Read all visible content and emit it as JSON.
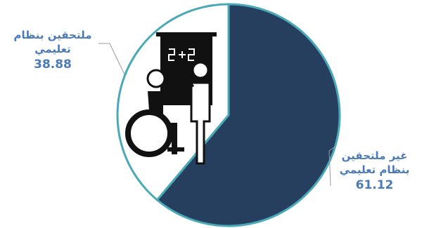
{
  "chart_data": {
    "type": "pie",
    "categories": [
      "غير ملتحقين بنظام تعليمي",
      "ملتحقين بنظام تعليمي"
    ],
    "values": [
      61.12,
      38.88
    ],
    "colors": [
      "#263f5f",
      "#ffffff"
    ],
    "edge_color": "#4aa9b8",
    "label_color": "#4a7ab8"
  }
}
